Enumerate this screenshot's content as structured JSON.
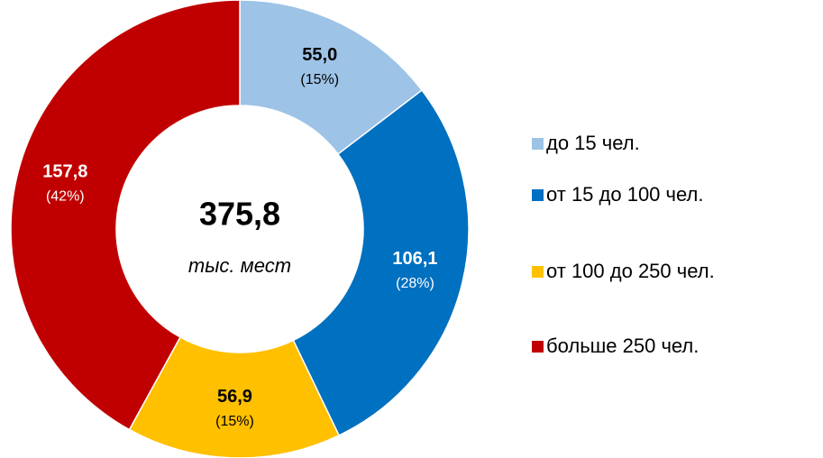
{
  "chart_data": {
    "type": "donut",
    "categories": [
      "до 15 чел.",
      "от 15 до 100 чел.",
      "от 100 до 250 чел.",
      "больше 250 чел."
    ],
    "values": [
      55.0,
      106.1,
      56.9,
      157.8
    ],
    "value_labels": [
      "55,0",
      "106,1",
      "56,9",
      "157,8"
    ],
    "percent_labels": [
      "(15%)",
      "(28%)",
      "(15%)",
      "(42%)"
    ],
    "colors": [
      "#9dc3e6",
      "#0070c0",
      "#ffc000",
      "#c00000"
    ],
    "center_text": "375,8",
    "center_subtext": "тыс. мест",
    "legend": "right"
  }
}
